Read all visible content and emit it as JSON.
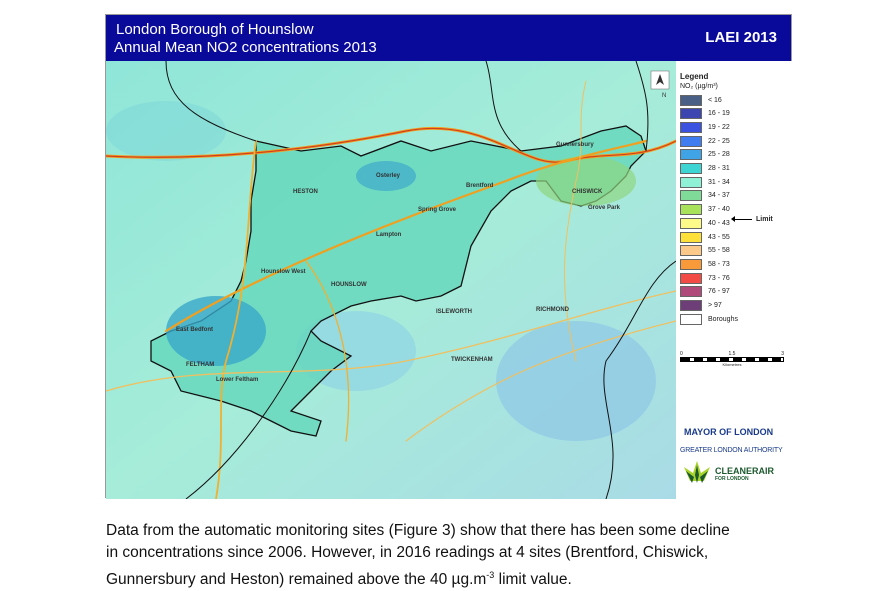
{
  "header": {
    "title_line1": "London Borough of Hounslow",
    "title_line2": "Annual Mean NO2 concentrations 2013",
    "badge": "LAEI 2013"
  },
  "map": {
    "labels": [
      "HESTON",
      "ISLEWORTH",
      "CHISWICK",
      "FELTHAM",
      "Brentford",
      "Osterley",
      "Hounslow West",
      "HOUNSLOW",
      "Lampton",
      "Spring Grove",
      "Gunnersbury",
      "RICHMOND",
      "TWICKENHAM",
      "Lower Feltham",
      "East Bedfont",
      "Grove Park"
    ],
    "north_label": "N"
  },
  "legend": {
    "title": "Legend",
    "unit": "NO₂ (µg/m³)",
    "items": [
      {
        "label": "< 16",
        "color": "#4a5f86"
      },
      {
        "label": "16 - 19",
        "color": "#3d45b0"
      },
      {
        "label": "19 - 22",
        "color": "#3b52e0"
      },
      {
        "label": "22 - 25",
        "color": "#3e7cf0"
      },
      {
        "label": "25 - 28",
        "color": "#3fa3e6"
      },
      {
        "label": "28 - 31",
        "color": "#3dd4d4"
      },
      {
        "label": "31 - 34",
        "color": "#8ff2d6"
      },
      {
        "label": "34 - 37",
        "color": "#7fdc98"
      },
      {
        "label": "37 - 40",
        "color": "#a8e25a"
      },
      {
        "label": "40 - 43",
        "color": "#fdfa8a"
      },
      {
        "label": "43 - 55",
        "color": "#fde03a"
      },
      {
        "label": "55 - 58",
        "color": "#fbc98a"
      },
      {
        "label": "58 - 73",
        "color": "#f99a3a"
      },
      {
        "label": "73 - 76",
        "color": "#f24a44"
      },
      {
        "label": "76 - 97",
        "color": "#b04a7a"
      },
      {
        "label": "> 97",
        "color": "#6e3e78"
      },
      {
        "label": "Boroughs",
        "color": "#ffffff"
      }
    ],
    "limit_label": "Limit",
    "scale_ticks": [
      "0",
      "1.5",
      "3"
    ],
    "scale_unit": "Kilometres"
  },
  "logos": {
    "mayor": "MAYOR OF LONDON",
    "gla": "GREATER LONDON AUTHORITY",
    "cleanair": "CLEANERAIR",
    "cleanair_sub": "FOR LONDON"
  },
  "caption": {
    "line1": "Data from the automatic monitoring sites (Figure 3) show that there has been some decline",
    "line2": "in concentrations since 2006.  However, in 2016 readings at 4 sites (Brentford, Chiswick,",
    "line3_pre": "Gunnersbury and Heston) remained above the 40 µg.m",
    "line3_sup": "-3",
    "line3_post": " limit value."
  }
}
